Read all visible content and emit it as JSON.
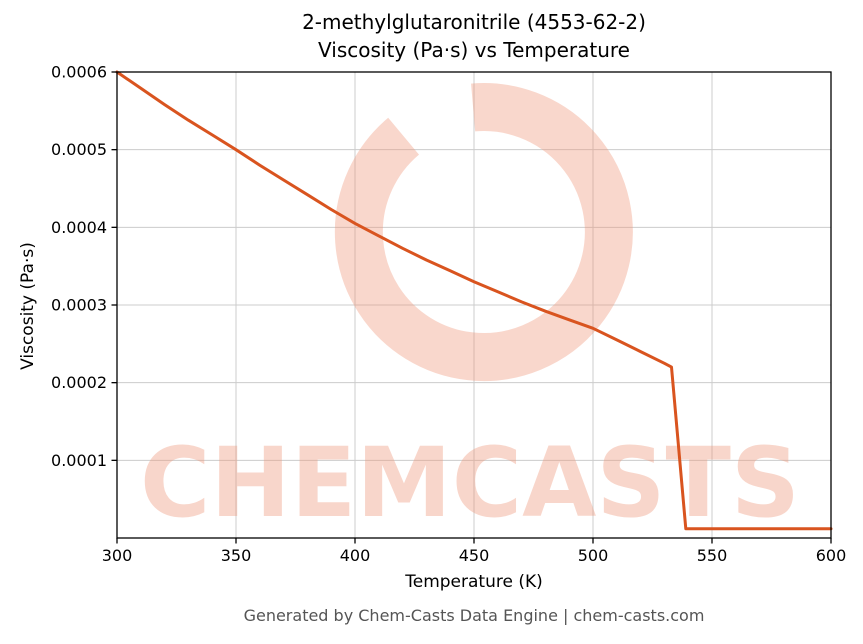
{
  "title": {
    "line1": "2-methylglutaronitrile (4553-62-2)",
    "line2": "Viscosity (Pa·s) vs Temperature"
  },
  "axes": {
    "x_label": "Temperature (K)",
    "y_label": "Viscosity (Pa·s)"
  },
  "footer": "Generated by Chem-Casts Data Engine | chem-casts.com",
  "watermark": {
    "text": "CHEMCASTS",
    "logo": "chemcasts-ring-logo",
    "color": "#ef9678",
    "opacity": 0.38
  },
  "colors": {
    "line": "#d9541f",
    "grid": "#cccccc",
    "spine": "#000000",
    "tick_text": "#000000",
    "footer_text": "#555555"
  },
  "chart_data": {
    "type": "line",
    "title": "2-methylglutaronitrile (4553-62-2) Viscosity (Pa·s) vs Temperature",
    "xlabel": "Temperature (K)",
    "ylabel": "Viscosity (Pa·s)",
    "xlim": [
      300,
      600
    ],
    "ylim": [
      0,
      0.0006
    ],
    "x_ticks": [
      300,
      350,
      400,
      450,
      500,
      550,
      600
    ],
    "y_ticks": [
      0.0001,
      0.0002,
      0.0003,
      0.0004,
      0.0005,
      0.0006
    ],
    "grid": true,
    "legend": false,
    "series": [
      {
        "name": "viscosity",
        "x": [
          300,
          310,
          320,
          330,
          340,
          350,
          360,
          370,
          380,
          390,
          400,
          410,
          420,
          430,
          440,
          450,
          460,
          470,
          480,
          490,
          500,
          510,
          520,
          530,
          533,
          539,
          550,
          600
        ],
        "y": [
          0.0006,
          0.000579,
          0.000558,
          0.000538,
          0.000519,
          0.0005,
          0.00048,
          0.000461,
          0.000442,
          0.000423,
          0.000405,
          0.000389,
          0.000373,
          0.000358,
          0.000344,
          0.00033,
          0.000317,
          0.000304,
          0.000292,
          0.000281,
          0.00027,
          0.000255,
          0.00024,
          0.000225,
          0.00022,
          1.2e-05,
          1.2e-05,
          1.2e-05
        ]
      }
    ]
  }
}
